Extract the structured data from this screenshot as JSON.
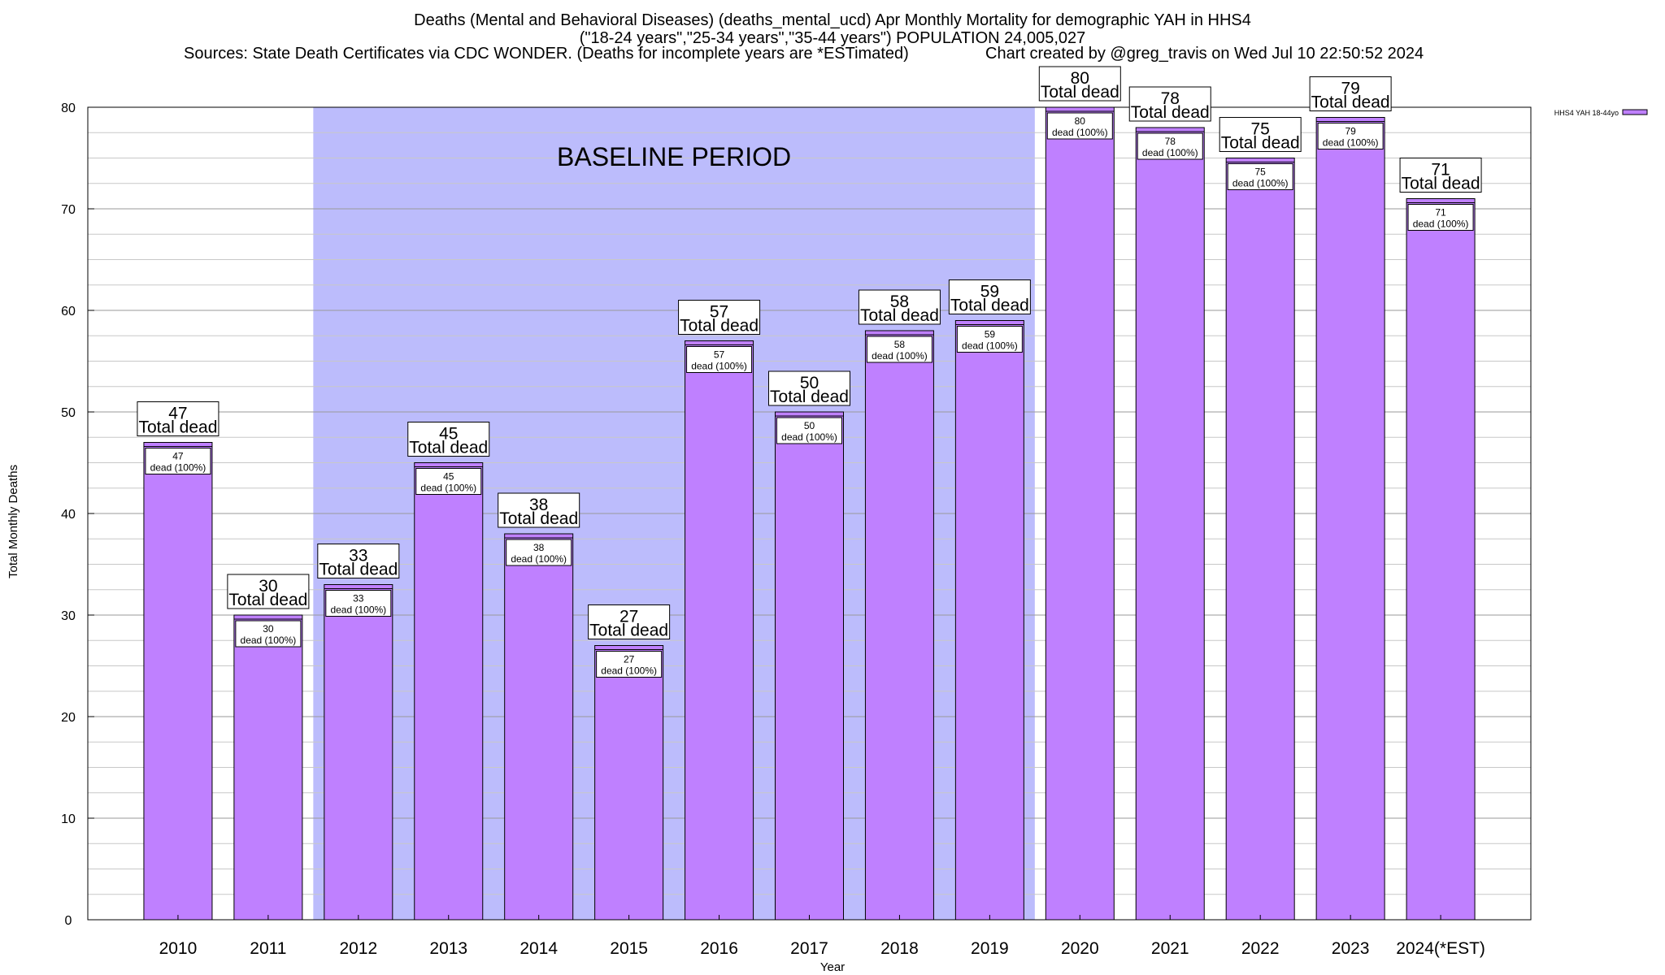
{
  "title": {
    "line1": "Deaths (Mental and Behavioral Diseases) (deaths_mental_ucd) Apr Monthly Mortality for demographic YAH in HHS4",
    "line2": "(\"18-24 years\",\"25-34 years\",\"35-44 years\") POPULATION 24,005,027",
    "sources": "Sources: State Death Certificates via CDC WONDER. (Deaths for incomplete years are *ESTimated)",
    "credit": "Chart created by @greg_travis on Wed Jul 10 22:50:52 2024"
  },
  "chart_data": {
    "type": "bar",
    "categories": [
      "2010",
      "2011",
      "2012",
      "2013",
      "2014",
      "2015",
      "2016",
      "2017",
      "2018",
      "2019",
      "2020",
      "2021",
      "2022",
      "2023",
      "2024(*EST)"
    ],
    "series": [
      {
        "name": "HHS4 YAH 18-44yo",
        "values": [
          47,
          30,
          33,
          45,
          38,
          27,
          57,
          50,
          58,
          59,
          80,
          78,
          75,
          79,
          71
        ],
        "color": "#bf80ff"
      }
    ],
    "bar_label_top": "Total dead",
    "bar_label_inner": "dead (100%)",
    "xlabel": "Year",
    "ylabel": "Total Monthly Deaths",
    "ylim": [
      0,
      80
    ],
    "yticks": [
      0,
      10,
      20,
      30,
      40,
      50,
      60,
      70,
      80
    ],
    "grid": true,
    "baseline_period": {
      "label": "BASELINE PERIOD",
      "from": "2012",
      "to": "2019",
      "color": "#bcbcfc"
    },
    "legend": {
      "position": "top-right"
    }
  }
}
